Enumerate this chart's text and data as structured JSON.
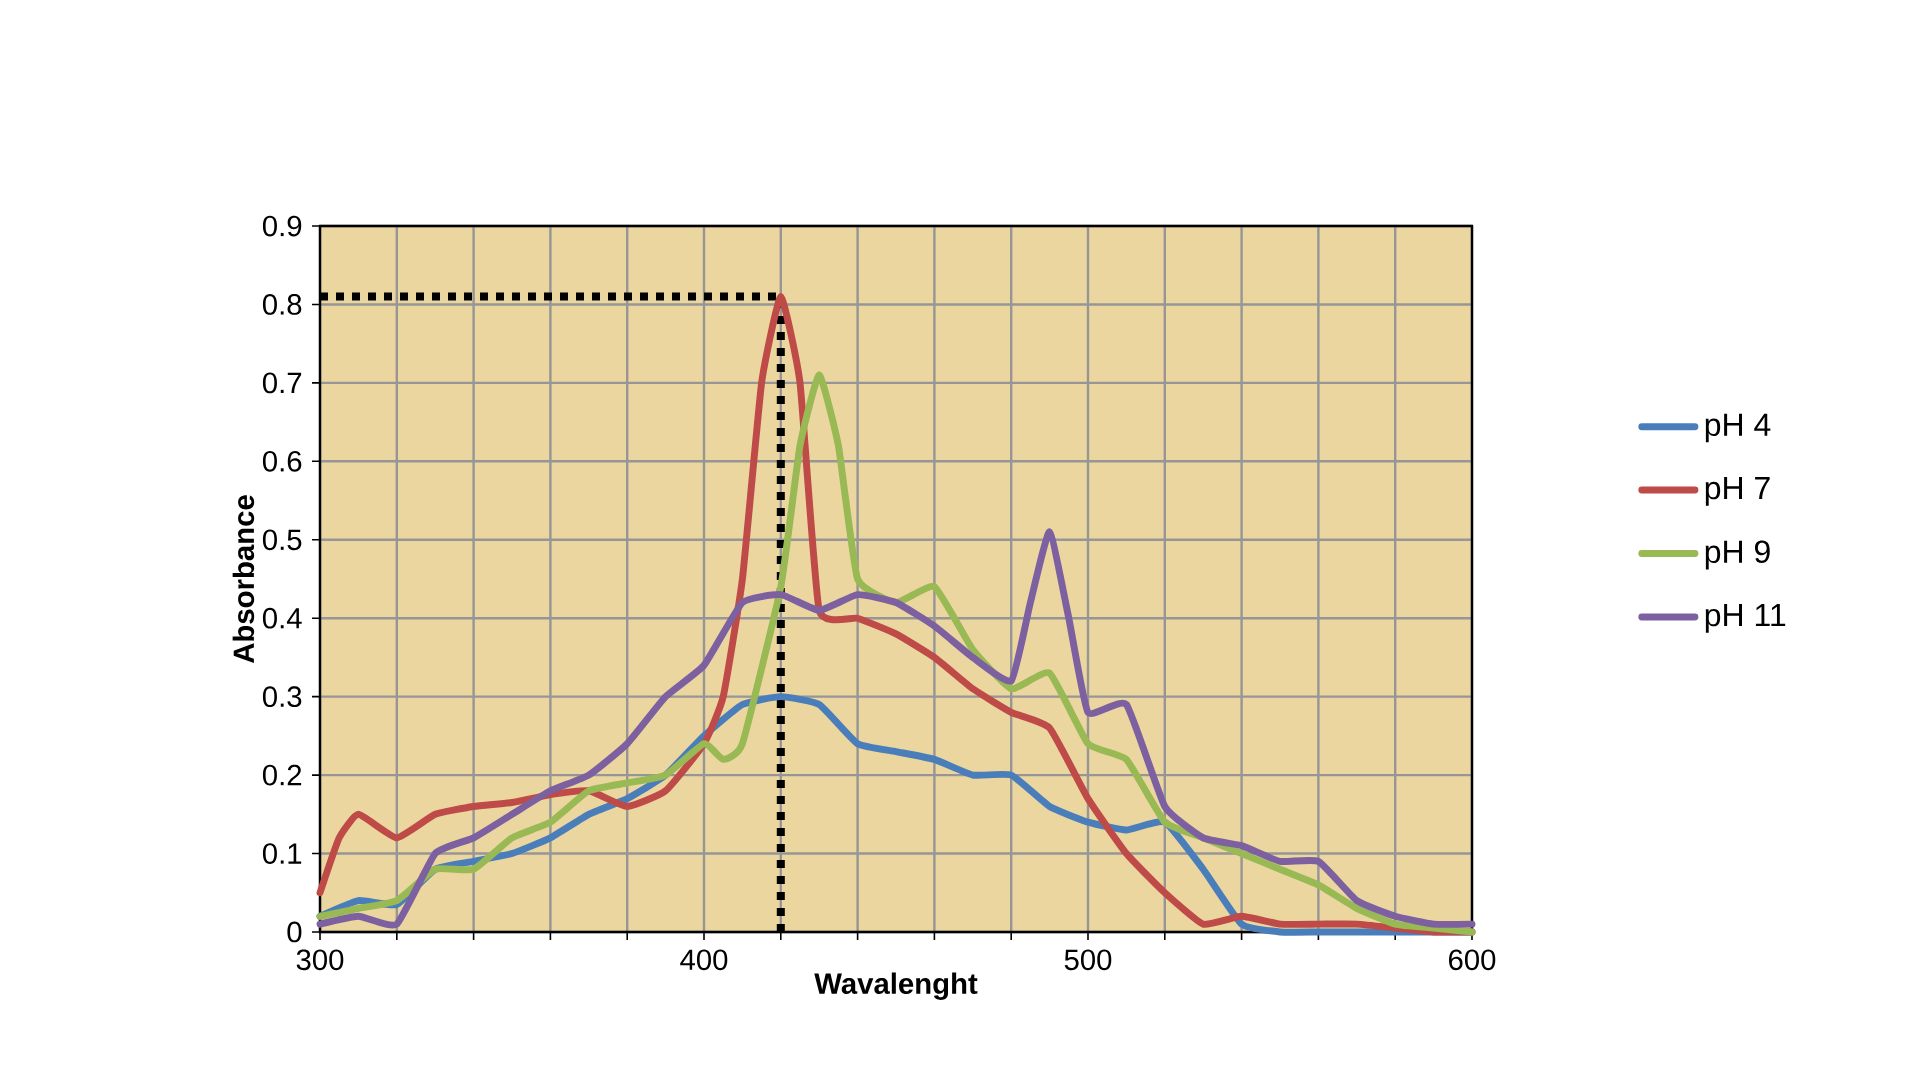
{
  "chart_data": {
    "type": "line",
    "xlabel": "Wavalenght",
    "ylabel": "Absorbance",
    "xlim": [
      300,
      600
    ],
    "ylim": [
      0,
      0.9
    ],
    "xticks": [
      300,
      {
        "value": 320,
        "label": null
      },
      {
        "value": 340,
        "label": null
      },
      {
        "value": 360,
        "label": null
      },
      {
        "value": 380,
        "label": null
      },
      400,
      {
        "value": 420,
        "label": null
      },
      {
        "value": 440,
        "label": null
      },
      {
        "value": 460,
        "label": null
      },
      {
        "value": 480,
        "label": null
      },
      500,
      {
        "value": 520,
        "label": null
      },
      {
        "value": 540,
        "label": null
      },
      {
        "value": 560,
        "label": null
      },
      {
        "value": 580,
        "label": null
      },
      600
    ],
    "yticks": [
      0,
      0.1,
      0.2,
      0.3,
      0.4,
      0.5,
      0.6,
      0.7,
      0.8,
      0.9
    ],
    "grid": true,
    "legend": "right",
    "marker": "none",
    "line_style": "solid",
    "ref_lines": [
      {
        "axis": "x",
        "value": 420,
        "color": "#000000",
        "line_style": "dotted"
      },
      {
        "axis": "y",
        "value": 0.81,
        "color": "#000000",
        "line_style": "dotted"
      }
    ],
    "series": [
      {
        "name": "pH 4",
        "color": "#4a7ebb",
        "x": [
          300,
          310,
          320,
          330,
          340,
          350,
          360,
          370,
          380,
          390,
          400,
          410,
          420,
          430,
          440,
          450,
          460,
          470,
          480,
          490,
          500,
          510,
          520,
          530,
          540,
          550,
          560,
          570,
          580,
          590,
          600
        ],
        "values": [
          0.02,
          0.04,
          0.035,
          0.08,
          0.09,
          0.1,
          0.12,
          0.15,
          0.17,
          0.2,
          0.25,
          0.29,
          0.3,
          0.29,
          0.24,
          0.23,
          0.22,
          0.2,
          0.2,
          0.16,
          0.14,
          0.13,
          0.14,
          0.08,
          0.01,
          0,
          0,
          0,
          0,
          0,
          0
        ]
      },
      {
        "name": "pH 7",
        "color": "#be4b48",
        "x": [
          300,
          305,
          310,
          320,
          330,
          340,
          350,
          360,
          370,
          380,
          390,
          400,
          405,
          410,
          415,
          420,
          425,
          430,
          440,
          450,
          460,
          470,
          480,
          490,
          500,
          510,
          520,
          530,
          540,
          550,
          560,
          570,
          580,
          590,
          600
        ],
        "values": [
          0.05,
          0.12,
          0.15,
          0.12,
          0.15,
          0.16,
          0.165,
          0.175,
          0.18,
          0.16,
          0.18,
          0.24,
          0.3,
          0.45,
          0.7,
          0.81,
          0.7,
          0.41,
          0.4,
          0.38,
          0.35,
          0.31,
          0.28,
          0.26,
          0.17,
          0.1,
          0.05,
          0.01,
          0.02,
          0.01,
          0.01,
          0.01,
          0.005,
          0,
          0
        ]
      },
      {
        "name": "pH 9",
        "color": "#98b954",
        "x": [
          300,
          310,
          320,
          330,
          340,
          350,
          360,
          370,
          380,
          390,
          400,
          405,
          410,
          420,
          425,
          430,
          435,
          440,
          450,
          460,
          470,
          480,
          490,
          500,
          510,
          520,
          530,
          540,
          550,
          560,
          570,
          580,
          590,
          600
        ],
        "values": [
          0.02,
          0.03,
          0.04,
          0.08,
          0.08,
          0.12,
          0.14,
          0.18,
          0.19,
          0.2,
          0.24,
          0.22,
          0.24,
          0.44,
          0.62,
          0.71,
          0.62,
          0.45,
          0.42,
          0.44,
          0.36,
          0.31,
          0.33,
          0.24,
          0.22,
          0.14,
          0.12,
          0.1,
          0.08,
          0.06,
          0.03,
          0.01,
          0.005,
          0
        ]
      },
      {
        "name": "pH 11",
        "color": "#7d60a0",
        "x": [
          300,
          310,
          320,
          330,
          340,
          350,
          360,
          370,
          380,
          390,
          400,
          410,
          420,
          430,
          440,
          450,
          460,
          470,
          480,
          485,
          490,
          495,
          500,
          510,
          520,
          530,
          540,
          550,
          560,
          570,
          580,
          590,
          600
        ],
        "values": [
          0.01,
          0.02,
          0.01,
          0.1,
          0.12,
          0.15,
          0.18,
          0.2,
          0.24,
          0.3,
          0.34,
          0.42,
          0.43,
          0.41,
          0.43,
          0.42,
          0.39,
          0.35,
          0.32,
          0.42,
          0.51,
          0.4,
          0.28,
          0.29,
          0.16,
          0.12,
          0.11,
          0.09,
          0.09,
          0.04,
          0.02,
          0.01,
          0.01
        ]
      }
    ]
  }
}
